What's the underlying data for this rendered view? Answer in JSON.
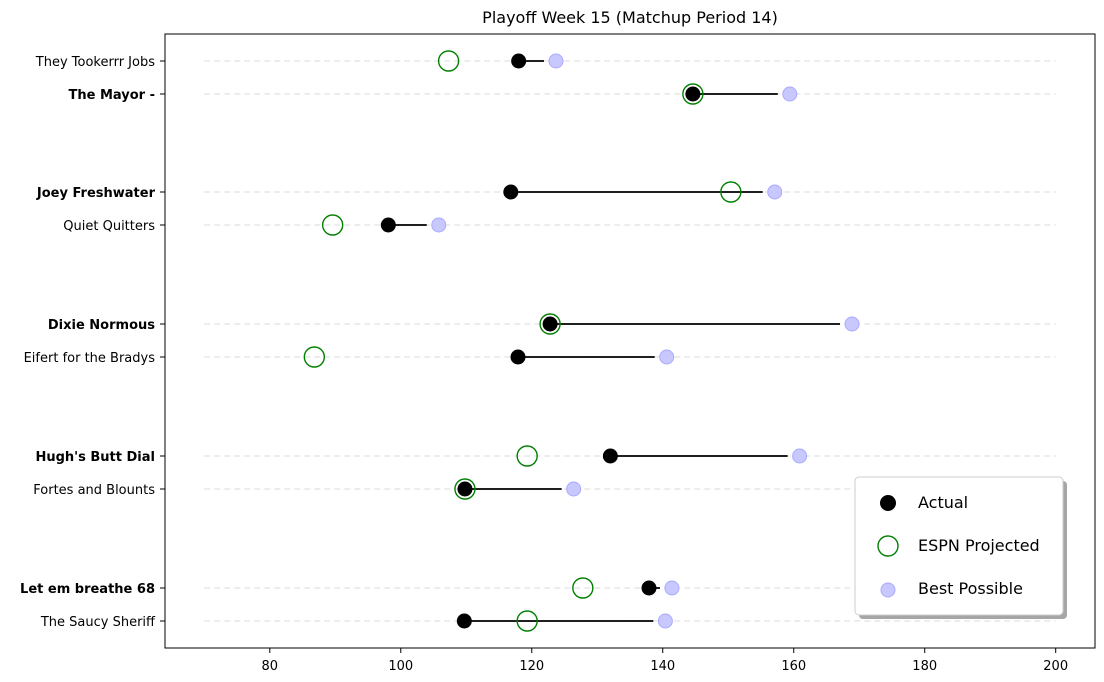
{
  "chart_data": {
    "type": "scatter",
    "title": "Playoff Week 15 (Matchup Period 14)",
    "xlabel": "",
    "ylabel": "",
    "xlim": [
      64,
      206
    ],
    "xticks": [
      80,
      100,
      120,
      140,
      160,
      180,
      200
    ],
    "grid": "horizontal dashed guide lines from 70 to 200",
    "legend": {
      "placement": "lower-right",
      "entries": [
        "Actual",
        "ESPN Projected",
        "Best Possible"
      ]
    },
    "teams": [
      {
        "name": "They Tookerrr Jobs",
        "bold": false,
        "actual": 118.0,
        "projected": 107.3,
        "best": 123.7
      },
      {
        "name": "The Mayor -",
        "bold": true,
        "actual": 144.6,
        "projected": 144.6,
        "best": 159.4
      },
      {
        "name": "Joey Freshwater",
        "bold": true,
        "actual": 116.8,
        "projected": 150.4,
        "best": 157.1
      },
      {
        "name": "Quiet Quitters",
        "bold": false,
        "actual": 98.1,
        "projected": 89.6,
        "best": 105.8
      },
      {
        "name": "Dixie Normous",
        "bold": true,
        "actual": 122.8,
        "projected": 122.8,
        "best": 168.9
      },
      {
        "name": "Eifert  for the Bradys",
        "bold": false,
        "actual": 117.9,
        "projected": 86.8,
        "best": 140.6
      },
      {
        "name": "Hugh's  Butt Dial",
        "bold": true,
        "actual": 132.0,
        "projected": 119.3,
        "best": 160.9
      },
      {
        "name": "Fortes and Blounts",
        "bold": false,
        "actual": 109.8,
        "projected": 109.8,
        "best": 126.4
      },
      {
        "name": "Let em breathe 68",
        "bold": true,
        "actual": 137.9,
        "projected": 127.8,
        "best": 141.4
      },
      {
        "name": "The Saucy Sheriff",
        "bold": false,
        "actual": 109.7,
        "projected": 119.3,
        "best": 140.4
      }
    ]
  },
  "colors": {
    "actual": "#000000",
    "projected": "#008000",
    "best": "#c8c8ff",
    "best_edge": "#a9a9ff",
    "grid": "#e2e2e2"
  }
}
